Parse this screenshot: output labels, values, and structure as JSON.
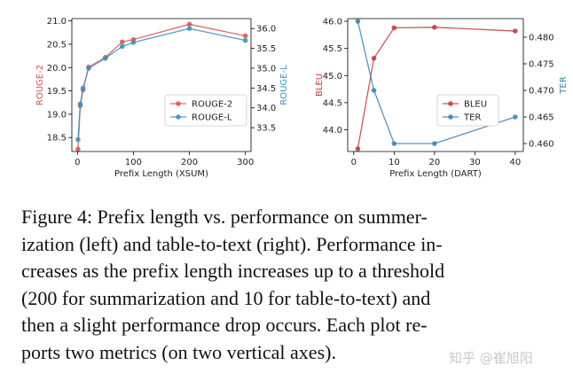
{
  "chart_data": [
    {
      "type": "line",
      "xlabel": "Prefix Length (XSUM)",
      "y1label": "ROUGE-2",
      "y2label": "ROUGE-L",
      "xlim": [
        -10,
        310
      ],
      "y1lim": [
        18.2,
        21.05
      ],
      "y2lim": [
        32.9,
        36.25
      ],
      "xticks": [
        0,
        100,
        200,
        300
      ],
      "y1ticks": [
        18.5,
        19.0,
        19.5,
        20.0,
        20.5,
        21.0
      ],
      "y2ticks": [
        33.5,
        34.0,
        34.5,
        35.0,
        35.5,
        36.0
      ],
      "legend_position": "lower-right",
      "grid": false,
      "series": [
        {
          "name": "ROUGE-2",
          "axis": "left",
          "color": "#d9534f",
          "x": [
            1,
            5,
            10,
            20,
            50,
            80,
            100,
            200,
            300
          ],
          "y": [
            18.25,
            19.18,
            19.52,
            20.01,
            20.22,
            20.55,
            20.6,
            20.93,
            20.68
          ]
        },
        {
          "name": "ROUGE-L",
          "axis": "right",
          "color": "#3a8fc1",
          "x": [
            1,
            5,
            10,
            20,
            50,
            80,
            100,
            200,
            300
          ],
          "y": [
            33.2,
            34.1,
            34.5,
            35.0,
            35.25,
            35.55,
            35.65,
            36.0,
            35.7
          ]
        }
      ]
    },
    {
      "type": "line",
      "xlabel": "Prefix Length (DART)",
      "y1label": "BLEU",
      "y2label": "TER",
      "xlim": [
        -1.5,
        42
      ],
      "y1lim": [
        43.6,
        46.05
      ],
      "y2lim": [
        0.4585,
        0.4835
      ],
      "xticks": [
        0,
        10,
        20,
        30,
        40
      ],
      "y1ticks": [
        44.0,
        44.5,
        45.0,
        45.5,
        46.0
      ],
      "y2ticks": [
        0.46,
        0.465,
        0.47,
        0.475,
        0.48
      ],
      "y2ticklabels": [
        "0.460",
        "0.465",
        "0.470",
        "0.475",
        "0.480"
      ],
      "legend_position": "lower-center",
      "grid": false,
      "series": [
        {
          "name": "BLEU",
          "axis": "left",
          "color": "#c0393e",
          "x": [
            1,
            5,
            10,
            20,
            40
          ],
          "y": [
            43.65,
            45.32,
            45.88,
            45.89,
            45.82
          ]
        },
        {
          "name": "TER",
          "axis": "right",
          "color": "#3a80b0",
          "x": [
            1,
            5,
            10,
            20,
            40
          ],
          "y": [
            0.483,
            0.47,
            0.46,
            0.46,
            0.465
          ]
        }
      ]
    }
  ],
  "caption": {
    "lines": [
      "Figure 4:   Prefix length vs. performance on summer-",
      "ization (left) and table-to-text (right).  Performance in-",
      "creases as the prefix length increases up to a threshold",
      "(200 for summarization and 10 for table-to-text) and",
      "then a slight performance drop occurs.  Each plot re-",
      "ports two metrics (on two vertical axes)."
    ]
  },
  "watermark": "知乎 @崔旭阳"
}
